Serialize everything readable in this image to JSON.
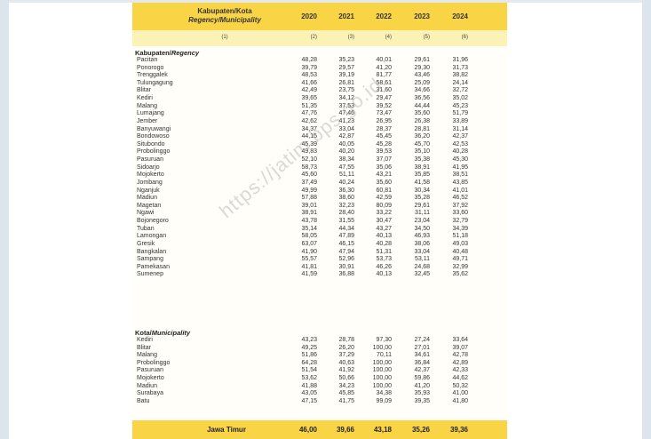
{
  "header": {
    "regency_label": "Kabupaten/Kota",
    "regency_label_en": "Regency/Municipality",
    "years": [
      "2020",
      "2021",
      "2022",
      "2023",
      "2024"
    ],
    "col_numbers": [
      "(1)",
      "(2)",
      "(3)",
      "(4)",
      "(5)",
      "(6)"
    ]
  },
  "sections": [
    {
      "title": "Kabupaten/",
      "title_en": "Regency",
      "rows": [
        {
          "name": "Pacitan",
          "values": [
            "48,28",
            "35,23",
            "40,01",
            "29,61",
            "31,96"
          ]
        },
        {
          "name": "Ponorogo",
          "values": [
            "39,79",
            "29,57",
            "41,20",
            "29,30",
            "31,73"
          ]
        },
        {
          "name": "Trenggalek",
          "values": [
            "48,53",
            "39,19",
            "81,77",
            "43,46",
            "38,82"
          ]
        },
        {
          "name": "Tulungagung",
          "values": [
            "41,66",
            "26,81",
            "58,61",
            "25,09",
            "24,14"
          ]
        },
        {
          "name": "Blitar",
          "values": [
            "42,49",
            "23,75",
            "31,60",
            "34,66",
            "32,72"
          ]
        },
        {
          "name": "Kediri",
          "values": [
            "39,65",
            "34,12",
            "29,47",
            "36,56",
            "35,02"
          ]
        },
        {
          "name": "Malang",
          "values": [
            "51,35",
            "37,53",
            "39,52",
            "44,44",
            "45,23"
          ]
        },
        {
          "name": "Lumajang",
          "values": [
            "47,76",
            "47,46",
            "73,47",
            "35,60",
            "51,79"
          ]
        },
        {
          "name": "Jember",
          "values": [
            "42,62",
            "41,23",
            "26,95",
            "26,38",
            "33,89"
          ]
        },
        {
          "name": "Banyuwangi",
          "values": [
            "34,37",
            "33,04",
            "28,37",
            "28,81",
            "31,14"
          ]
        },
        {
          "name": "Bondowoso",
          "values": [
            "44,15",
            "42,87",
            "45,45",
            "36,20",
            "42,37"
          ]
        },
        {
          "name": "Situbondo",
          "values": [
            "45,39",
            "40,05",
            "45,28",
            "45,70",
            "42,53"
          ]
        },
        {
          "name": "Probolinggo",
          "values": [
            "49,83",
            "40,20",
            "39,53",
            "35,10",
            "40,28"
          ]
        },
        {
          "name": "Pasuruan",
          "values": [
            "52,10",
            "38,34",
            "37,07",
            "35,38",
            "45,30"
          ]
        },
        {
          "name": "Sidoarjo",
          "values": [
            "58,73",
            "47,55",
            "35,06",
            "38,91",
            "41,95"
          ]
        },
        {
          "name": "Mojokerto",
          "values": [
            "45,60",
            "51,11",
            "43,21",
            "35,85",
            "38,51"
          ]
        },
        {
          "name": "Jombang",
          "values": [
            "37,49",
            "40,24",
            "35,60",
            "41,58",
            "43,85"
          ]
        },
        {
          "name": "Nganjuk",
          "values": [
            "49,99",
            "36,30",
            "60,81",
            "30,34",
            "41,01"
          ]
        },
        {
          "name": "Madiun",
          "values": [
            "57,88",
            "38,60",
            "42,59",
            "35,28",
            "46,52"
          ]
        },
        {
          "name": "Magetan",
          "values": [
            "39,01",
            "32,23",
            "80,09",
            "29,61",
            "37,92"
          ]
        },
        {
          "name": "Ngawi",
          "values": [
            "38,91",
            "28,40",
            "33,22",
            "31,11",
            "33,60"
          ]
        },
        {
          "name": "Bojonegoro",
          "values": [
            "43,78",
            "31,55",
            "30,47",
            "23,04",
            "32,79"
          ]
        },
        {
          "name": "Tuban",
          "values": [
            "35,14",
            "44,34",
            "43,27",
            "34,50",
            "34,39"
          ]
        },
        {
          "name": "Lamongan",
          "values": [
            "58,05",
            "47,89",
            "40,13",
            "46,93",
            "51,18"
          ]
        },
        {
          "name": "Gresik",
          "values": [
            "63,07",
            "46,15",
            "40,28",
            "38,06",
            "49,03"
          ]
        },
        {
          "name": "Bangkalan",
          "values": [
            "41,90",
            "47,94",
            "51,31",
            "33,04",
            "40,48"
          ]
        },
        {
          "name": "Sampang",
          "values": [
            "55,57",
            "52,96",
            "53,73",
            "53,11",
            "49,71"
          ]
        },
        {
          "name": "Pamekasan",
          "values": [
            "41,81",
            "30,91",
            "46,26",
            "24,68",
            "32,99"
          ]
        },
        {
          "name": "Sumenep",
          "values": [
            "41,59",
            "36,88",
            "40,13",
            "32,45",
            "35,62"
          ]
        }
      ]
    },
    {
      "title": "Kota/",
      "title_en": "Municipality",
      "rows": [
        {
          "name": "Kediri",
          "values": [
            "43,23",
            "28,78",
            "97,30",
            "27,24",
            "33,64"
          ]
        },
        {
          "name": "Blitar",
          "values": [
            "49,25",
            "26,20",
            "100,00",
            "27,01",
            "39,07"
          ]
        },
        {
          "name": "Malang",
          "values": [
            "51,86",
            "37,29",
            "70,11",
            "34,61",
            "42,78"
          ]
        },
        {
          "name": "Probolinggo",
          "values": [
            "64,28",
            "40,63",
            "100,00",
            "36,84",
            "42,89"
          ]
        },
        {
          "name": "Pasuruan",
          "values": [
            "51,54",
            "41,92",
            "100,00",
            "42,37",
            "42,33"
          ]
        },
        {
          "name": "Mojokerto",
          "values": [
            "53,62",
            "50,66",
            "100,00",
            "59,86",
            "44,62"
          ]
        },
        {
          "name": "Madiun",
          "values": [
            "41,88",
            "34,23",
            "100,00",
            "41,20",
            "50,32"
          ]
        },
        {
          "name": "Surabaya",
          "values": [
            "43,05",
            "45,85",
            "34,38",
            "35,93",
            "41,00"
          ]
        },
        {
          "name": "Batu",
          "values": [
            "47,15",
            "41,75",
            "99,09",
            "39,35",
            "41,80"
          ]
        }
      ]
    }
  ],
  "total": {
    "name": "Jawa Timur",
    "values": [
      "46,00",
      "39,66",
      "43,18",
      "35,26",
      "39,36"
    ]
  },
  "watermark": "https://jatim.bps.go.id"
}
